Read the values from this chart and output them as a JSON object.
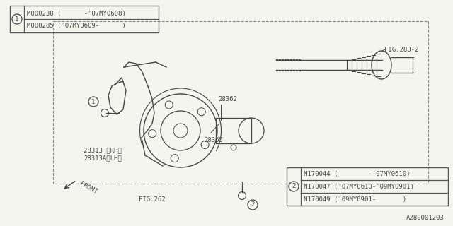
{
  "bg_color": "#f5f5f0",
  "border_color": "#555555",
  "line_color": "#444444",
  "title": "",
  "footnote": "A280001203",
  "box1_lines": [
    "M000238 (      -'07MY0608)",
    "M000285 ('07MY0609-      )"
  ],
  "box1_circle": "1",
  "box2_lines": [
    "N170044 (        -'07MY0610)",
    "N170047 ('07MY0610-'09MY0901)",
    "N170049 ('09MY0901-       )"
  ],
  "box2_circle": "2",
  "label_28362": "28362",
  "label_28365": "28365",
  "label_28313": "28313 〈RH〉",
  "label_28313a": "28313A〈LH〉",
  "label_fig262": "FIG.262",
  "label_fig280": "FIG.280-2",
  "label_front": "FRONT"
}
